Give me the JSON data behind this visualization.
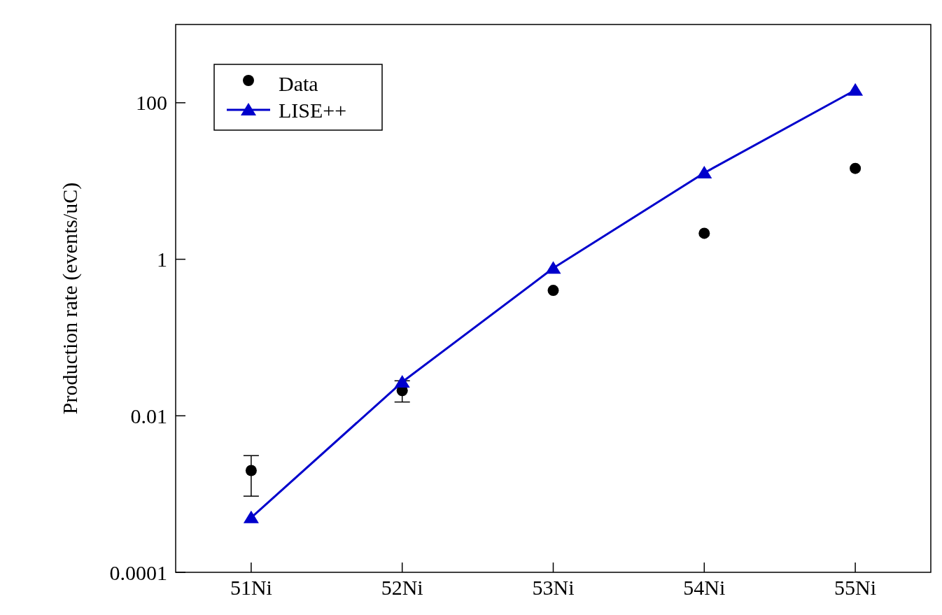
{
  "chart_data": {
    "type": "scatter",
    "ylabel": "Production rate (events/uC)",
    "categories": [
      "51Ni",
      "52Ni",
      "53Ni",
      "54Ni",
      "55Ni"
    ],
    "series": [
      {
        "name": "Data",
        "color": "#000000",
        "marker": "circle",
        "values": [
          0.002,
          0.021,
          0.4,
          2.15,
          14.5
        ],
        "errors": [
          [
            0.00094,
            0.0031
          ],
          [
            0.015,
            0.028
          ],
          null,
          null,
          null
        ]
      },
      {
        "name": "LISE++",
        "type": "line",
        "color": "#0000cc",
        "marker": "triangle",
        "values": [
          0.0005,
          0.027,
          0.77,
          12.7,
          145
        ]
      }
    ],
    "log": "y",
    "ylim": [
      0.0001,
      1000
    ],
    "yticks": [
      0.0001,
      0.01,
      1,
      100
    ],
    "legend": "top left",
    "grid": false
  }
}
